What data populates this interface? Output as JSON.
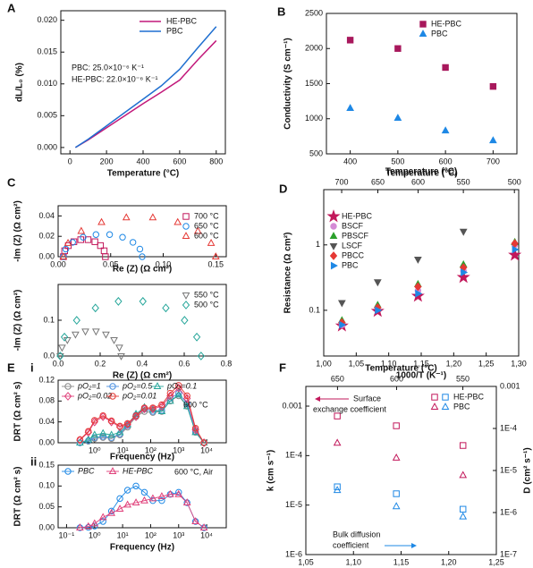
{
  "chart_data": [
    {
      "type": "line",
      "panel": "A",
      "xlabel": "Temperature (°C)",
      "ylabel": "dL/L₀ (%)",
      "xlim": [
        -50,
        850
      ],
      "xticks": [
        0,
        200,
        400,
        600,
        800
      ],
      "ylim": [
        -0.001,
        0.0215
      ],
      "yticks": [
        {
          "value": 0,
          "label": "0.000"
        },
        0.005,
        {
          "value": 0.01,
          "label": "0.010"
        },
        0.015,
        {
          "value": 0.02,
          "label": "0.020"
        }
      ],
      "x": [
        30,
        100,
        200,
        300,
        400,
        500,
        600,
        700,
        800
      ],
      "series": [
        {
          "name": "HE-PBC",
          "color": "#c2187a",
          "values": [
            0,
            0.0012,
            0.0031,
            0.005,
            0.0069,
            0.0087,
            0.0106,
            0.0138,
            0.0168
          ]
        },
        {
          "name": "PBC",
          "color": "#1f6fd0",
          "values": [
            0,
            0.0013,
            0.0034,
            0.0055,
            0.0076,
            0.0097,
            0.0123,
            0.0157,
            0.019
          ]
        }
      ],
      "legend": "upper center",
      "annotations": [
        "PBC: 25.0×10⁻⁶ K⁻¹",
        "HE-PBC: 22.0×10⁻⁶ K⁻¹"
      ]
    },
    {
      "type": "scatter",
      "panel": "B",
      "xlabel": "Temperature (°C)",
      "ylabel": "Conductivity (S cm⁻¹)",
      "xlim": [
        350,
        750
      ],
      "xticks": [
        400,
        500,
        600,
        700
      ],
      "ylim": [
        500,
        2500
      ],
      "yticks": [
        500,
        1000,
        1500,
        2000,
        2500
      ],
      "x": [
        400,
        500,
        600,
        700
      ],
      "series": [
        {
          "name": "HE-PBC",
          "color": "#a8185c",
          "marker": "square",
          "filled": true,
          "values": [
            2120,
            2000,
            1730,
            1460
          ]
        },
        {
          "name": "PBC",
          "color": "#1e88e5",
          "marker": "triangle",
          "filled": true,
          "values": [
            1150,
            1010,
            830,
            690
          ]
        }
      ],
      "legend": "upper right",
      "colored_legend_text": true
    },
    {
      "type": "scatter",
      "panel": "C",
      "xlabel": "Re (Z) (Ω cm²)",
      "ylabel": "-Im (Z) (Ω cm²)",
      "xlim": [
        0,
        0.16
      ],
      "xticks": [
        {
          "value": 0,
          "label": "0.00"
        },
        0.05,
        {
          "value": 0.1,
          "label": "0.10"
        },
        0.15
      ],
      "ylim": [
        0,
        0.05
      ],
      "yticks": [
        {
          "value": 0,
          "label": "0.00"
        },
        0.02,
        0.04
      ],
      "series": [
        {
          "name": "700 °C",
          "color": "#c2185b",
          "marker": "square",
          "filled": false,
          "x": [
            0.005,
            0.0062,
            0.0097,
            0.015,
            0.0215,
            0.0285,
            0.035,
            0.0403,
            0.0438,
            0.045
          ],
          "values": [
            0,
            0.0058,
            0.0109,
            0.0147,
            0.0167,
            0.0167,
            0.0147,
            0.0109,
            0.0058,
            0
          ]
        },
        {
          "name": "650 °C",
          "color": "#1e88e5",
          "marker": "circle",
          "filled": false,
          "x": [
            0.005,
            0.0073,
            0.0138,
            0.0238,
            0.036,
            0.049,
            0.0613,
            0.0712,
            0.0778,
            0.08
          ],
          "values": [
            0,
            0.0075,
            0.0141,
            0.0191,
            0.0217,
            0.0217,
            0.0191,
            0.0141,
            0.0075,
            0
          ]
        },
        {
          "name": "600 °C",
          "color": "#e53935",
          "marker": "triangle",
          "filled": false,
          "x": [
            0.005,
            0.0094,
            0.022,
            0.0413,
            0.0649,
            0.0901,
            0.1138,
            0.133,
            0.1456,
            0.15
          ],
          "values": [
            0,
            0.0133,
            0.0251,
            0.0338,
            0.0384,
            0.0384,
            0.0338,
            0.0251,
            0.0133,
            0
          ]
        }
      ],
      "legend": "upper right",
      "colored_legend_text": true
    },
    {
      "type": "scatter",
      "xlabel": "Re (Z) (Ω cm²)",
      "ylabel": "-Im (Z) (Ω cm²)",
      "xlim": [
        0,
        0.8
      ],
      "xticks": [
        {
          "value": 0,
          "label": "0.0"
        },
        0.2,
        0.4,
        0.6,
        0.8
      ],
      "ylim": [
        0,
        0.2
      ],
      "yticks": [
        {
          "value": 0,
          "label": "0.0"
        },
        0.1
      ],
      "series": [
        {
          "name": "550 °C",
          "color": "#777777",
          "marker": "tridown",
          "filled": false,
          "x": [
            0.01,
            0.0187,
            0.0439,
            0.0825,
            0.1298,
            0.1802,
            0.2275,
            0.2661,
            0.2913,
            0.3
          ],
          "values": [
            0,
            0.0239,
            0.045,
            0.0606,
            0.069,
            0.069,
            0.0606,
            0.045,
            0.0239,
            0
          ]
        },
        {
          "name": "500 °C",
          "color": "#26a69a",
          "marker": "diamond",
          "filled": false,
          "x": [
            0.01,
            0.0301,
            0.0884,
            0.1775,
            0.2867,
            0.4033,
            0.5125,
            0.6016,
            0.6599,
            0.68
          ],
          "values": [
            0,
            0.053,
            0.0997,
            0.1342,
            0.1527,
            0.1527,
            0.1342,
            0.0997,
            0.053,
            0
          ]
        }
      ],
      "legend": "upper right",
      "colored_legend_text": true
    },
    {
      "type": "scatter",
      "panel": "D",
      "xlabel": "1000/T (K⁻¹)",
      "x2label": "Temperature (°C)",
      "ylabel": "Resistance (Ω cm²)",
      "xlim": [
        1.0,
        1.3
      ],
      "xticks": [
        {
          "value": 1.0,
          "label": "1,00"
        },
        {
          "value": 1.05,
          "label": "1,05"
        },
        {
          "value": 1.1,
          "label": "1,10"
        },
        {
          "value": 1.15,
          "label": "1,15"
        },
        {
          "value": 1.2,
          "label": "1,20"
        },
        {
          "value": 1.25,
          "label": "1,25"
        },
        {
          "value": 1.3,
          "label": "1,30"
        }
      ],
      "x2ticks": [
        700,
        650,
        600,
        550,
        500
      ],
      "ylim": [
        0.02,
        7
      ],
      "ylog": true,
      "yticks": [
        0.1,
        1
      ],
      "x": [
        1.028,
        1.083,
        1.145,
        1.215,
        1.294
      ],
      "series": [
        {
          "name": "HE-PBC",
          "color": "#c2185b",
          "marker": "star",
          "filled": true,
          "values": [
            0.058,
            0.097,
            0.165,
            0.32,
            0.7
          ]
        },
        {
          "name": "BSCF",
          "color": "#d58ad5",
          "marker": "circle",
          "filled": true,
          "values": [
            0.06,
            0.11,
            0.2,
            0.4,
            1.0
          ]
        },
        {
          "name": "PBSCF",
          "color": "#2ca02c",
          "marker": "triangle",
          "filled": true,
          "values": [
            0.07,
            0.12,
            0.25,
            0.5,
            1.1
          ]
        },
        {
          "name": "LSCF",
          "color": "#555555",
          "marker": "tridown",
          "filled": true,
          "values": [
            0.13,
            0.27,
            0.6,
            1.6,
            null
          ]
        },
        {
          "name": "PBCC",
          "color": "#e53935",
          "marker": "diamond",
          "filled": true,
          "values": [
            0.065,
            0.11,
            0.23,
            0.45,
            1.05
          ]
        },
        {
          "name": "PBC",
          "color": "#1e88e5",
          "marker": "triright",
          "filled": true,
          "values": [
            0.06,
            0.1,
            0.18,
            0.38,
            0.85
          ]
        }
      ],
      "legend": "upper left",
      "colored_legend_text": true
    },
    {
      "type": "line",
      "panel": "E",
      "subpanel": "i",
      "xlabel": "Frequency (Hz)",
      "ylabel": "DRT (Ω cm² s)",
      "xlim": [
        0.05,
        50000
      ],
      "xlog": true,
      "xticks": [
        {
          "value": 1,
          "label": "10⁰"
        },
        {
          "value": 10,
          "label": "10¹"
        },
        {
          "value": 100,
          "label": "10²"
        },
        {
          "value": 1000,
          "label": "10³"
        },
        {
          "value": 10000,
          "label": "10⁴"
        }
      ],
      "ylim": [
        0,
        0.12
      ],
      "yticks": [
        {
          "value": 0,
          "label": "0.00"
        },
        0.04,
        0.08,
        0.12
      ],
      "x": [
        0.3,
        0.6,
        1,
        2,
        4,
        8,
        15,
        30,
        60,
        120,
        250,
        500,
        1000,
        2000,
        4000,
        8000
      ],
      "series": [
        {
          "name": "pO₂=1",
          "color": "#888888",
          "marker": "circle",
          "filled": false,
          "values": [
            0,
            0.003,
            0.008,
            0.01,
            0.008,
            0.015,
            0.03,
            0.05,
            0.06,
            0.058,
            0.06,
            0.08,
            0.09,
            0.07,
            0.02,
            0
          ]
        },
        {
          "name": "pO₂=0.5",
          "color": "#4a8fe0",
          "marker": "circle",
          "filled": false,
          "values": [
            0,
            0.004,
            0.01,
            0.012,
            0.01,
            0.017,
            0.033,
            0.053,
            0.065,
            0.06,
            0.062,
            0.085,
            0.095,
            0.075,
            0.022,
            0
          ]
        },
        {
          "name": "pO₂=0.1",
          "color": "#26a69a",
          "marker": "triangle",
          "filled": false,
          "values": [
            0,
            0.006,
            0.015,
            0.018,
            0.015,
            0.02,
            0.035,
            0.055,
            0.068,
            0.063,
            0.06,
            0.08,
            0.092,
            0.07,
            0.02,
            0
          ]
        },
        {
          "name": "pO₂=0.02",
          "color": "#e0407a",
          "marker": "diamond",
          "filled": false,
          "values": [
            0.005,
            0.02,
            0.04,
            0.05,
            0.04,
            0.03,
            0.035,
            0.05,
            0.065,
            0.065,
            0.07,
            0.09,
            0.105,
            0.085,
            0.025,
            0
          ]
        },
        {
          "name": "pO₂=0.01",
          "color": "#e53935",
          "marker": "circle",
          "filled": false,
          "values": [
            0.006,
            0.022,
            0.043,
            0.052,
            0.042,
            0.032,
            0.037,
            0.052,
            0.067,
            0.067,
            0.073,
            0.095,
            0.11,
            0.09,
            0.028,
            0
          ]
        }
      ],
      "legend": "upper left",
      "legend_columns": 3,
      "colored_legend_text": true,
      "annotations": [
        "600 °C"
      ]
    },
    {
      "type": "line",
      "subpanel": "ii",
      "xlabel": "Frequency (Hz)",
      "ylabel": "DRT (Ω cm² s)",
      "xlim": [
        0.05,
        50000
      ],
      "xlog": true,
      "xticks": [
        {
          "value": 0.1,
          "label": "10⁻¹"
        },
        {
          "value": 1,
          "label": "10⁰"
        },
        {
          "value": 10,
          "label": "10¹"
        },
        {
          "value": 100,
          "label": "10²"
        },
        {
          "value": 1000,
          "label": "10³"
        },
        {
          "value": 10000,
          "label": "10⁴"
        }
      ],
      "ylim": [
        0,
        0.15
      ],
      "yticks": [
        {
          "value": 0,
          "label": "0.00"
        },
        0.05,
        {
          "value": 0.1,
          "label": "0.10"
        },
        0.15
      ],
      "x": [
        0.3,
        0.6,
        1,
        2,
        4,
        8,
        15,
        30,
        60,
        120,
        250,
        500,
        1000,
        2000,
        4000,
        8000
      ],
      "series": [
        {
          "name": "PBC",
          "color": "#1e88e5",
          "marker": "circle",
          "filled": false,
          "values": [
            0,
            0.001,
            0.004,
            0.015,
            0.04,
            0.07,
            0.09,
            0.1,
            0.085,
            0.065,
            0.065,
            0.08,
            0.085,
            0.06,
            0.015,
            0
          ]
        },
        {
          "name": "HE-PBC",
          "color": "#e0407a",
          "marker": "triangle",
          "filled": false,
          "values": [
            0,
            0.003,
            0.01,
            0.025,
            0.035,
            0.045,
            0.055,
            0.06,
            0.065,
            0.07,
            0.075,
            0.08,
            0.08,
            0.06,
            0.015,
            0
          ]
        }
      ],
      "legend": "upper left",
      "legend_columns": 2,
      "colored_legend_text": true,
      "annotations": [
        "600 °C, Air"
      ]
    },
    {
      "type": "scatter",
      "panel": "F",
      "xlabel": "1000/T (K⁻¹)",
      "x2label": "Temperature (°C)",
      "ylabel": "k (cm s⁻¹)",
      "y2label": "D (cm² s⁻¹)",
      "xlim": [
        1.05,
        1.25
      ],
      "xticks": [
        {
          "value": 1.05,
          "label": "1,05"
        },
        {
          "value": 1.1,
          "label": "1,10"
        },
        {
          "value": 1.15,
          "label": "1,15"
        },
        {
          "value": 1.2,
          "label": "1,20"
        },
        {
          "value": 1.25,
          "label": "1,25"
        }
      ],
      "x2ticks": [
        650,
        600,
        550
      ],
      "ylim": [
        1e-06,
        0.0025
      ],
      "ylog": true,
      "yticks": [
        0.001,
        {
          "value": 0.0001,
          "label": "1E-4"
        },
        {
          "value": 1e-05,
          "label": "1E-5"
        },
        {
          "value": 1e-06,
          "label": "1E-6"
        }
      ],
      "y2lim": [
        1e-07,
        0.001
      ],
      "y2ticks": [
        0.001,
        {
          "value": 0.0001,
          "label": "1E-4"
        },
        {
          "value": 1e-05,
          "label": "1E-5"
        },
        {
          "value": 1e-06,
          "label": "1E-6"
        },
        {
          "value": 1e-07,
          "label": "1E-7"
        }
      ],
      "y_color": "#c2185b",
      "y2_color": "#1e88e5",
      "x": [
        1.083,
        1.145,
        1.215
      ],
      "series": [
        {
          "name": "HE-PBC",
          "marker": "square",
          "filled": false,
          "values": [
            0.00063,
            0.0004,
            0.00016
          ],
          "y2_values": [
            4.1e-06,
            2.8e-06,
            1.2e-06
          ]
        },
        {
          "name": "PBC",
          "marker": "triangle",
          "filled": false,
          "values": [
            0.00018,
            9e-05,
            4e-05
          ],
          "y2_values": [
            3.4e-06,
            1.4e-06,
            8e-07
          ]
        }
      ],
      "legend": "upper right",
      "annotations": [
        "Surface",
        "exchange coefficient",
        "Bulk diffusion",
        "coefficient"
      ]
    }
  ]
}
